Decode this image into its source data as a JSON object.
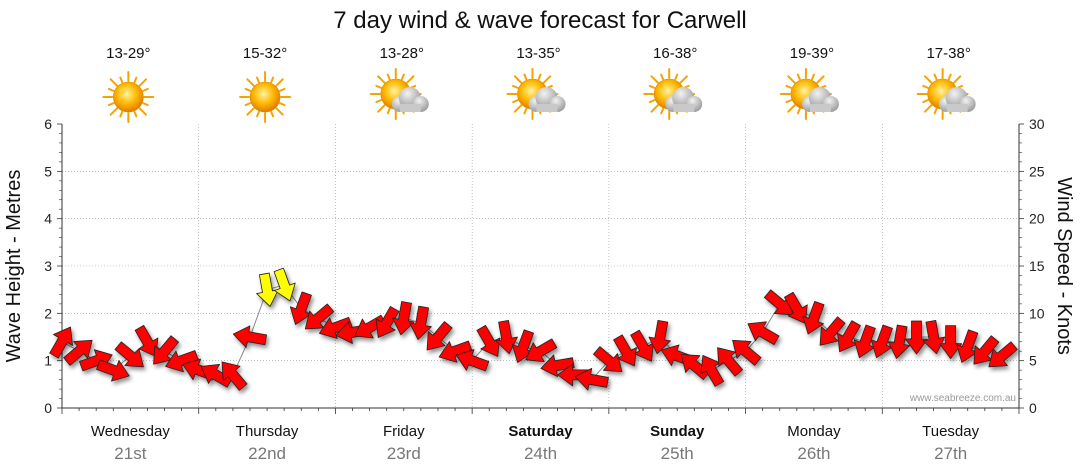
{
  "chart_data": {
    "type": "line",
    "title": "7 day wind & wave forecast for Carwell",
    "ylabel_left": "Wave Height - Metres",
    "ylabel_right": "Wind Speed - Knots",
    "ylim_left": [
      0,
      6
    ],
    "ylim_right": [
      0,
      30
    ],
    "yticks_left": [
      "0",
      "1",
      "2",
      "3",
      "4",
      "5",
      "6"
    ],
    "yticks_right": [
      "0",
      "5",
      "10",
      "15",
      "20",
      "25",
      "30"
    ],
    "grid": true,
    "days": [
      {
        "name": "Wednesday",
        "date": "21st",
        "temp": "13-29°",
        "weather": "sunny",
        "bold": false
      },
      {
        "name": "Thursday",
        "date": "22nd",
        "temp": "15-32°",
        "weather": "sunny",
        "bold": false
      },
      {
        "name": "Friday",
        "date": "23rd",
        "temp": "13-28°",
        "weather": "partly-cloudy",
        "bold": false
      },
      {
        "name": "Saturday",
        "date": "24th",
        "temp": "13-35°",
        "weather": "partly-cloudy",
        "bold": true
      },
      {
        "name": "Sunday",
        "date": "25th",
        "temp": "16-38°",
        "weather": "partly-cloudy",
        "bold": true
      },
      {
        "name": "Monday",
        "date": "26th",
        "temp": "19-39°",
        "weather": "partly-cloudy",
        "bold": false
      },
      {
        "name": "Tuesday",
        "date": "27th",
        "temp": "17-38°",
        "weather": "partly-cloudy",
        "bold": false
      }
    ],
    "series": [
      {
        "unit": "metres",
        "color_normal": "#ff0000",
        "color_highlight": "#ffff00",
        "x_hours": [
          0,
          3,
          6,
          9,
          12,
          15,
          18,
          21,
          24,
          27,
          30,
          33,
          36,
          39,
          42,
          45,
          48,
          51,
          54,
          57,
          60,
          63,
          66,
          69,
          72,
          75,
          78,
          81,
          84,
          87,
          90,
          93,
          96,
          99,
          102,
          105,
          108,
          111,
          114,
          117,
          120,
          123,
          126,
          129,
          132,
          135,
          138,
          141,
          144,
          147,
          150,
          153,
          156,
          159,
          162,
          165
        ],
        "values": [
          1.4,
          1.2,
          1.0,
          0.8,
          1.1,
          1.4,
          1.2,
          1.0,
          0.8,
          0.7,
          0.7,
          1.5,
          2.5,
          2.6,
          2.1,
          1.9,
          1.7,
          1.6,
          1.7,
          1.8,
          1.9,
          1.8,
          1.5,
          1.2,
          1.0,
          1.4,
          1.5,
          1.3,
          1.2,
          0.9,
          0.7,
          0.6,
          1.0,
          1.2,
          1.3,
          1.5,
          1.1,
          0.9,
          0.8,
          1.0,
          1.2,
          1.6,
          2.2,
          2.1,
          1.9,
          1.6,
          1.5,
          1.4,
          1.4,
          1.4,
          1.5,
          1.5,
          1.4,
          1.3,
          1.2,
          1.1
        ],
        "highlight": [
          false,
          false,
          false,
          false,
          false,
          false,
          false,
          false,
          false,
          false,
          false,
          false,
          true,
          true,
          false,
          false,
          false,
          false,
          false,
          false,
          false,
          false,
          false,
          false,
          false,
          false,
          false,
          false,
          false,
          false,
          false,
          false,
          false,
          false,
          false,
          false,
          false,
          false,
          false,
          false,
          false,
          false,
          false,
          false,
          false,
          false,
          false,
          false,
          false,
          false,
          false,
          false,
          false,
          false,
          false,
          false
        ],
        "direction_deg": [
          300,
          320,
          340,
          20,
          40,
          60,
          130,
          160,
          200,
          210,
          230,
          190,
          80,
          70,
          110,
          140,
          160,
          170,
          150,
          120,
          100,
          100,
          130,
          160,
          200,
          60,
          80,
          110,
          150,
          170,
          180,
          190,
          40,
          60,
          60,
          100,
          200,
          220,
          240,
          230,
          220,
          210,
          40,
          60,
          110,
          130,
          120,
          110,
          110,
          100,
          90,
          80,
          90,
          110,
          130,
          140
        ]
      }
    ]
  },
  "credit": "www.seabreeze.com.au",
  "colors": {
    "sun": "#f5a300",
    "cloud": "#bdbdbd",
    "grid": "#9a9a9a"
  }
}
